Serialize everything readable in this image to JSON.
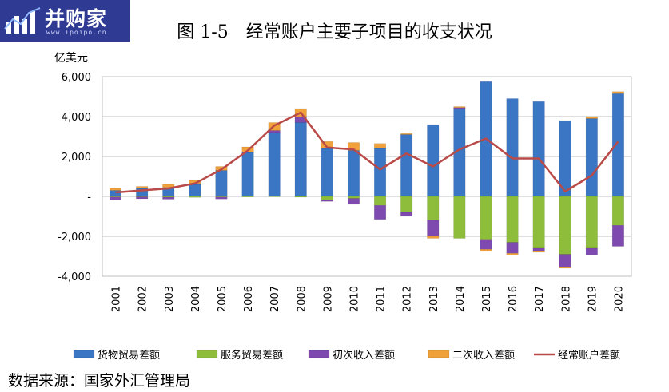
{
  "logo": {
    "text": "并购家",
    "url": "www.ipoipo.cn",
    "icon": "bar-chart-icon"
  },
  "source_label": "数据来源：国家外汇管理局",
  "chart_data": {
    "type": "bar",
    "title": "图 1-5　经常账户主要子项目的收支状况",
    "ylabel": "亿美元",
    "ylim": [
      -4000,
      6000
    ],
    "yticks": [
      {
        "value": 6000,
        "label": "6,000"
      },
      {
        "value": 4000,
        "label": "4,000"
      },
      {
        "value": 2000,
        "label": "2,000"
      },
      {
        "value": 0,
        "label": "-"
      },
      {
        "value": -2000,
        "label": "-2,000"
      },
      {
        "value": -4000,
        "label": "-4,000"
      }
    ],
    "grid": true,
    "legend_position": "bottom",
    "categories": [
      "2001",
      "2002",
      "2003",
      "2004",
      "2005",
      "2006",
      "2007",
      "2008",
      "2009",
      "2010",
      "2011",
      "2012",
      "2013",
      "2014",
      "2015",
      "2016",
      "2017",
      "2018",
      "2019",
      "2020"
    ],
    "series": [
      {
        "name": "货物贸易差额",
        "type": "bar",
        "color": "#3a76c4",
        "values": [
          300,
          400,
          450,
          600,
          1300,
          2200,
          3200,
          3700,
          2400,
          2300,
          2400,
          3100,
          3600,
          4400,
          5750,
          4900,
          4750,
          3800,
          3900,
          5150
        ]
      },
      {
        "name": "服务贸易差额",
        "type": "bar",
        "color": "#8ebd3c",
        "values": [
          -30,
          -20,
          -40,
          -50,
          -30,
          -30,
          -20,
          -40,
          -200,
          -100,
          -450,
          -800,
          -1200,
          -2100,
          -2150,
          -2300,
          -2600,
          -2900,
          -2600,
          -1450
        ]
      },
      {
        "name": "初次收入差额",
        "type": "bar",
        "color": "#7f4ab0",
        "values": [
          -150,
          -100,
          -100,
          50,
          -100,
          30,
          100,
          300,
          -50,
          -300,
          -700,
          -200,
          -800,
          50,
          -500,
          -550,
          -150,
          -650,
          -350,
          -1050
        ]
      },
      {
        "name": "二次收入差额",
        "type": "bar",
        "color": "#f0a13a",
        "values": [
          100,
          100,
          150,
          150,
          200,
          250,
          400,
          400,
          350,
          400,
          250,
          50,
          -100,
          50,
          -100,
          -100,
          -50,
          -50,
          100,
          100
        ]
      },
      {
        "name": "经常账户差额",
        "type": "line",
        "color": "#b94a48",
        "values": [
          200,
          300,
          400,
          650,
          1350,
          2300,
          3550,
          4200,
          2450,
          2350,
          1350,
          2150,
          1500,
          2350,
          2900,
          1900,
          1900,
          250,
          1050,
          2750
        ]
      }
    ]
  }
}
